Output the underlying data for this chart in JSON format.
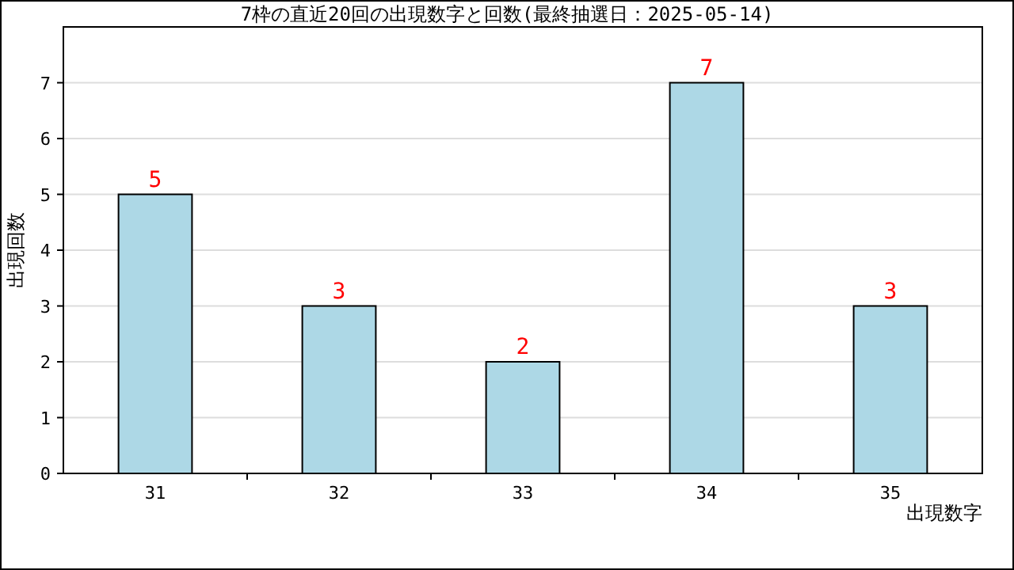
{
  "chart_data": {
    "type": "bar",
    "title": "7枠の直近20回の出現数字と回数(最終抽選日：2025-05-14)",
    "xlabel": "出現数字",
    "ylabel": "出現回数",
    "categories": [
      "31",
      "32",
      "33",
      "34",
      "35"
    ],
    "values": [
      5,
      3,
      2,
      7,
      3
    ],
    "color": "#add8e6",
    "ylim": [
      0,
      8
    ],
    "yticks": [
      0,
      1,
      2,
      3,
      4,
      5,
      6,
      7
    ],
    "grid": "y",
    "data_labels": true
  }
}
